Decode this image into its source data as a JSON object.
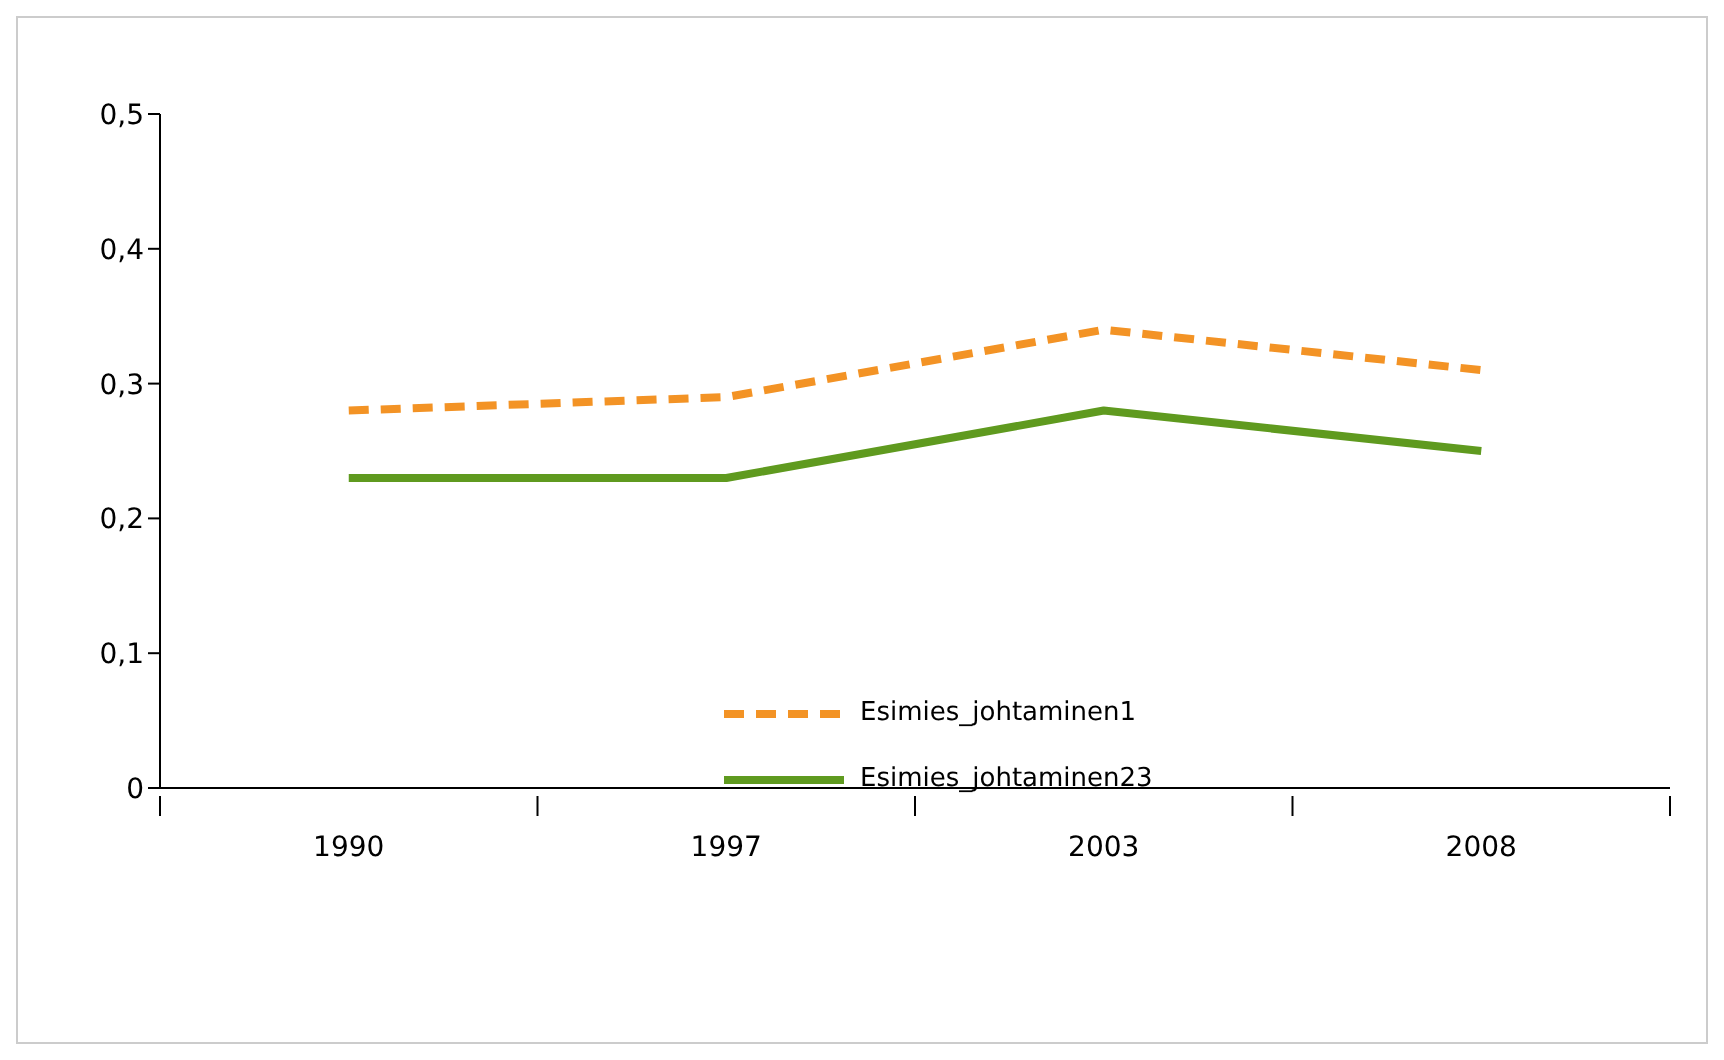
{
  "chart_data": {
    "type": "line",
    "categories": [
      "1990",
      "1997",
      "2003",
      "2008"
    ],
    "series": [
      {
        "name": "Esimies_johtaminen1",
        "color": "#f39325",
        "line_style": "dashed",
        "values": [
          0.28,
          0.29,
          0.34,
          0.31
        ]
      },
      {
        "name": "Esimies_johtaminen23",
        "color": "#5f9a1f",
        "line_style": "solid",
        "values": [
          0.23,
          0.23,
          0.28,
          0.25
        ]
      }
    ],
    "ylim": [
      0,
      0.5
    ],
    "yticks": [
      {
        "value": 0,
        "label": "0"
      },
      {
        "value": 0.1,
        "label": "0,1"
      },
      {
        "value": 0.2,
        "label": "0,2"
      },
      {
        "value": 0.3,
        "label": "0,3"
      },
      {
        "value": 0.4,
        "label": "0,4"
      },
      {
        "value": 0.5,
        "label": "0,5"
      }
    ],
    "grid": false,
    "legend": "bottom",
    "marker": "none"
  }
}
